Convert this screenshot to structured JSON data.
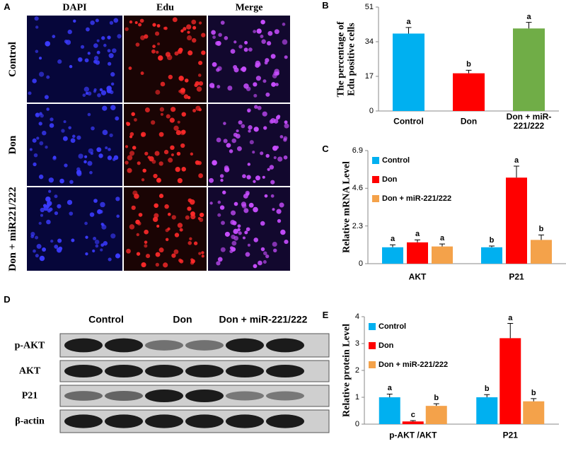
{
  "panel_a": {
    "label": "A",
    "columns": [
      "DAPI",
      "Edu",
      "Merge"
    ],
    "rows": [
      "Control",
      "Don",
      "Don + miR221/222"
    ]
  },
  "panel_d": {
    "label": "D",
    "columns": [
      "Control",
      "Don",
      "Don + miR-221/222"
    ],
    "rows": [
      "p-AKT",
      "AKT",
      "P21",
      "β-actin"
    ]
  },
  "chart_data": [
    {
      "panel": "B",
      "type": "bar",
      "ylabel": "The percentage of Edu positive cells",
      "categories": [
        "Control",
        "Don",
        "Don + miR-221/222"
      ],
      "values": [
        38,
        18.5,
        40.5
      ],
      "errors": [
        3,
        1.5,
        3
      ],
      "annotations": [
        "a",
        "b",
        "a"
      ],
      "colors": [
        "#00b0f0",
        "#ff0000",
        "#70ad47"
      ],
      "ylim": [
        0,
        51
      ],
      "yticks": [
        0,
        17,
        34,
        51
      ]
    },
    {
      "panel": "C",
      "type": "grouped-bar",
      "ylabel": "Relative mRNA Level",
      "categories": [
        "AKT",
        "P21"
      ],
      "series": [
        {
          "name": "Control",
          "color": "#00b0f0",
          "values": [
            1.0,
            1.0
          ],
          "errors": [
            0.15,
            0.08
          ],
          "annotations": [
            "a",
            "b"
          ]
        },
        {
          "name": "Don",
          "color": "#ff0000",
          "values": [
            1.3,
            5.25
          ],
          "errors": [
            0.15,
            0.7
          ],
          "annotations": [
            "a",
            "a"
          ]
        },
        {
          "name": "Don + miR-221/222",
          "color": "#f4a24a",
          "values": [
            1.05,
            1.45
          ],
          "errors": [
            0.15,
            0.3
          ],
          "annotations": [
            "a",
            "b"
          ]
        }
      ],
      "ylim": [
        0,
        6.9
      ],
      "yticks": [
        0,
        2.3,
        4.6,
        6.9
      ],
      "legend": "top-left"
    },
    {
      "panel": "E",
      "type": "grouped-bar",
      "ylabel": "Relative protein Level",
      "categories": [
        "p-AKT /AKT",
        "P21"
      ],
      "series": [
        {
          "name": "Control",
          "color": "#00b0f0",
          "values": [
            1.0,
            1.0
          ],
          "errors": [
            0.12,
            0.1
          ],
          "annotations": [
            "a",
            "b"
          ]
        },
        {
          "name": "Don",
          "color": "#ff0000",
          "values": [
            0.1,
            3.2
          ],
          "errors": [
            0.03,
            0.55
          ],
          "annotations": [
            "c",
            "a"
          ]
        },
        {
          "name": "Don + miR-221/222",
          "color": "#f4a24a",
          "values": [
            0.68,
            0.85
          ],
          "errors": [
            0.08,
            0.1
          ],
          "annotations": [
            "b",
            "b"
          ]
        }
      ],
      "ylim": [
        0,
        4
      ],
      "yticks": [
        0,
        1,
        2,
        3,
        4
      ],
      "legend": "top-left"
    }
  ]
}
